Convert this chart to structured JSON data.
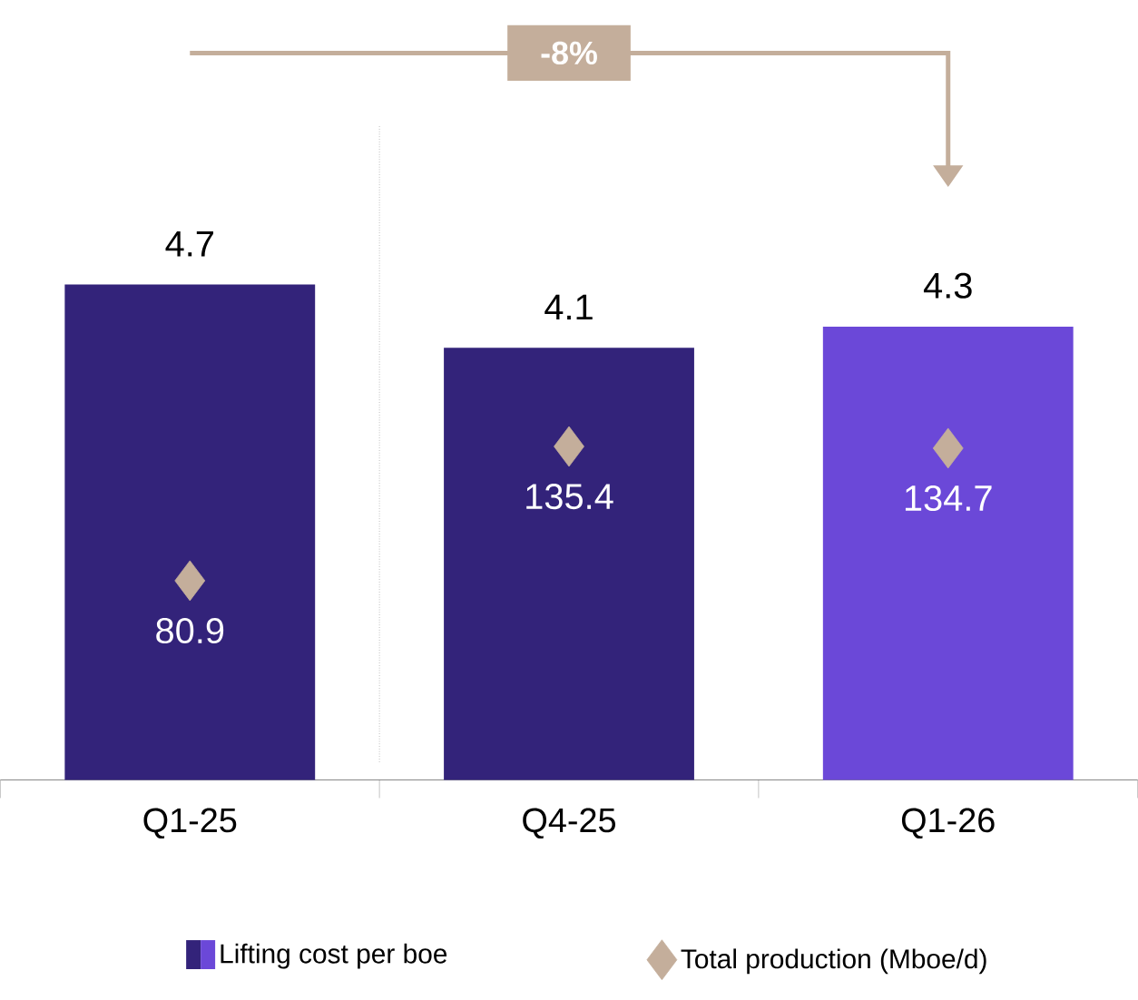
{
  "chart_data": {
    "type": "bar",
    "categories": [
      "Q1-25",
      "Q4-25",
      "Q1-26"
    ],
    "series": [
      {
        "name": "Lifting cost per boe",
        "colors": [
          "#33237a",
          "#33237a",
          "#6b48d8"
        ],
        "values": [
          4.7,
          4.1,
          4.3
        ]
      },
      {
        "name": "Total production (Mboe/d)",
        "type": "scatter",
        "axis": "y2",
        "color": "#c4ae9b",
        "marker": "diamond",
        "values": [
          80.9,
          135.4,
          134.7
        ]
      }
    ],
    "data_labels": true,
    "tick_labels": "x",
    "legend": "bottom",
    "annotations": [
      "-8%"
    ]
  }
}
